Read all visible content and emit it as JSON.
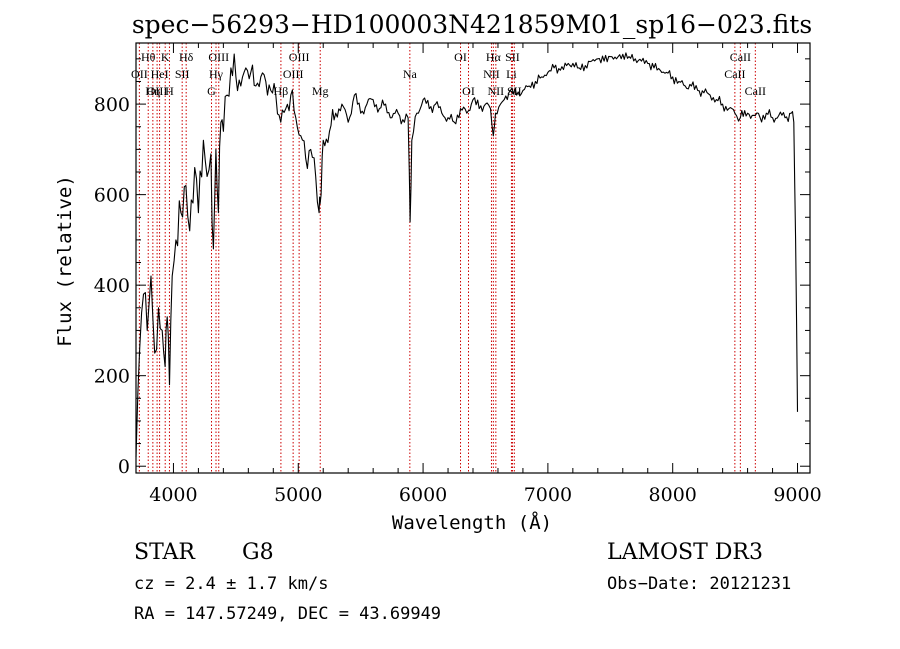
{
  "title": "spec−56293−HD100003N421859M01_sp16−023.fits",
  "info": {
    "class": "STAR",
    "subclass": "G8",
    "cz": "cz = 2.4 ± 1.7 km/s",
    "radec": "RA = 147.57249, DEC =  43.69949",
    "survey": "LAMOST DR3",
    "obs_date": "Obs−Date: 20121231"
  },
  "colors": {
    "axis": "#000000",
    "spectrum": "#000000",
    "line_marker": "#cc0000"
  },
  "chart_data": {
    "type": "line",
    "title": "spec−56293−HD100003N421859M01_sp16−023.fits",
    "xlabel": "Wavelength (Å)",
    "ylabel": "Flux (relative)",
    "xlim": [
      3700,
      9100
    ],
    "ylim": [
      -15,
      935
    ],
    "xticks": [
      4000,
      5000,
      6000,
      7000,
      8000,
      9000
    ],
    "yticks": [
      0,
      200,
      400,
      600,
      800
    ],
    "series": [
      {
        "name": "flux",
        "x": [
          3700,
          3730,
          3760,
          3790,
          3820,
          3850,
          3880,
          3910,
          3933,
          3950,
          3968,
          3990,
          4020,
          4060,
          4100,
          4130,
          4170,
          4200,
          4240,
          4270,
          4300,
          4320,
          4340,
          4360,
          4380,
          4400,
          4430,
          4460,
          4500,
          4540,
          4580,
          4620,
          4660,
          4700,
          4740,
          4780,
          4820,
          4860,
          4900,
          4940,
          4980,
          5020,
          5060,
          5100,
          5140,
          5167,
          5175,
          5183,
          5200,
          5250,
          5300,
          5350,
          5400,
          5450,
          5500,
          5550,
          5600,
          5650,
          5700,
          5750,
          5800,
          5850,
          5880,
          5890,
          5896,
          5910,
          5950,
          6000,
          6050,
          6100,
          6150,
          6200,
          6250,
          6300,
          6350,
          6400,
          6450,
          6500,
          6540,
          6563,
          6580,
          6620,
          6650,
          6700,
          6750,
          6800,
          6850,
          6900,
          6950,
          7000,
          7050,
          7100,
          7150,
          7200,
          7250,
          7300,
          7350,
          7400,
          7450,
          7500,
          7550,
          7600,
          7650,
          7700,
          7750,
          7800,
          7850,
          7900,
          7950,
          8000,
          8050,
          8100,
          8150,
          8200,
          8250,
          8300,
          8350,
          8400,
          8450,
          8498,
          8542,
          8600,
          8662,
          8700,
          8750,
          8800,
          8850,
          8900,
          8950,
          8970,
          8985,
          9000
        ],
        "values": [
          20,
          260,
          380,
          300,
          420,
          250,
          350,
          300,
          220,
          330,
          180,
          420,
          500,
          560,
          620,
          520,
          660,
          560,
          720,
          640,
          690,
          480,
          700,
          560,
          760,
          740,
          820,
          880,
          860,
          840,
          880,
          870,
          840,
          860,
          850,
          830,
          820,
          760,
          790,
          820,
          770,
          730,
          680,
          700,
          640,
          560,
          580,
          600,
          720,
          740,
          780,
          800,
          760,
          820,
          780,
          800,
          810,
          790,
          800,
          770,
          780,
          760,
          770,
          650,
          540,
          720,
          780,
          810,
          790,
          800,
          780,
          770,
          760,
          790,
          780,
          810,
          790,
          800,
          790,
          730,
          780,
          800,
          810,
          830,
          820,
          830,
          840,
          850,
          860,
          870,
          880,
          875,
          885,
          890,
          880,
          885,
          895,
          900,
          895,
          905,
          900,
          910,
          905,
          900,
          895,
          890,
          880,
          875,
          870,
          860,
          850,
          840,
          840,
          830,
          825,
          820,
          810,
          800,
          790,
          780,
          770,
          780,
          775,
          770,
          780,
          770,
          775,
          770,
          780,
          760,
          500,
          120
        ]
      }
    ],
    "line_markers": [
      {
        "label": "Hθ",
        "x": 3798,
        "row": 1
      },
      {
        "label": "OII",
        "x": 3727,
        "row": 2
      },
      {
        "label": "OIII",
        "x": 3869,
        "row": 3
      },
      {
        "label": "K",
        "x": 3934,
        "row": 1
      },
      {
        "label": "HeI",
        "x": 3889,
        "row": 2
      },
      {
        "label": "Hη",
        "x": 3835,
        "row": 3
      },
      {
        "label": "Hδ",
        "x": 4102,
        "row": 1
      },
      {
        "label": "SII",
        "x": 4070,
        "row": 2
      },
      {
        "label": "H",
        "x": 3968,
        "row": 3
      },
      {
        "label": "OIII",
        "x": 4363,
        "row": 1
      },
      {
        "label": "Hγ",
        "x": 4341,
        "row": 2
      },
      {
        "label": "G",
        "x": 4305,
        "row": 3
      },
      {
        "label": "OIII",
        "x": 5007,
        "row": 1
      },
      {
        "label": "OIII",
        "x": 4959,
        "row": 2
      },
      {
        "label": "Hβ",
        "x": 4861,
        "row": 3
      },
      {
        "label": "Mg",
        "x": 5176,
        "row": 3
      },
      {
        "label": "Na",
        "x": 5894,
        "row": 2
      },
      {
        "label": "OI",
        "x": 6300,
        "row": 1
      },
      {
        "label": "OI",
        "x": 6364,
        "row": 3
      },
      {
        "label": "Hα",
        "x": 6563,
        "row": 1
      },
      {
        "label": "SII",
        "x": 6716,
        "row": 1
      },
      {
        "label": "NII",
        "x": 6548,
        "row": 2
      },
      {
        "label": "Li",
        "x": 6708,
        "row": 2
      },
      {
        "label": "NII",
        "x": 6583,
        "row": 3
      },
      {
        "label": "SII",
        "x": 6731,
        "row": 3
      },
      {
        "label": "CaII",
        "x": 8542,
        "row": 1
      },
      {
        "label": "CaII",
        "x": 8498,
        "row": 2
      },
      {
        "label": "CaII",
        "x": 8662,
        "row": 3
      }
    ]
  }
}
